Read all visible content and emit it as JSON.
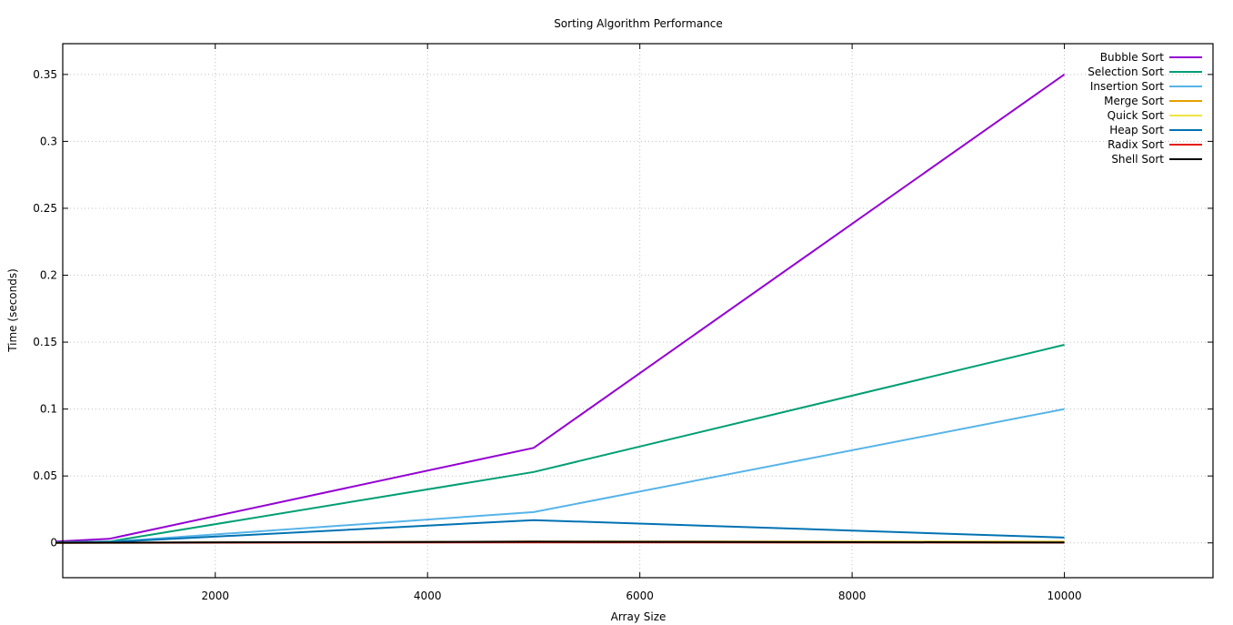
{
  "chart_data": {
    "type": "line",
    "title": "Sorting Algorithm Performance",
    "xlabel": "Array Size",
    "ylabel": "Time (seconds)",
    "xlim": [
      563,
      11400
    ],
    "ylim": [
      -0.026,
      0.373
    ],
    "xticks": [
      2000,
      4000,
      6000,
      8000,
      10000
    ],
    "xtick_labels": [
      "2000",
      "4000",
      "6000",
      "8000",
      "10000"
    ],
    "yticks": [
      0,
      0.05,
      0.1,
      0.15,
      0.2,
      0.25,
      0.3,
      0.35
    ],
    "ytick_labels": [
      "0",
      "0.05",
      "0.1",
      "0.15",
      "0.2",
      "0.25",
      "0.3",
      "0.35"
    ],
    "grid": true,
    "legend_position": "top-right",
    "x": [
      500,
      1000,
      5000,
      10000
    ],
    "series": [
      {
        "name": "Bubble Sort",
        "color": "#9400d3",
        "values": [
          0.001,
          0.003,
          0.071,
          0.35
        ]
      },
      {
        "name": "Selection Sort",
        "color": "#009e73",
        "values": [
          0.0005,
          0.001,
          0.053,
          0.148
        ]
      },
      {
        "name": "Insertion Sort",
        "color": "#56b4e9",
        "values": [
          0.0003,
          0.0008,
          0.023,
          0.1
        ]
      },
      {
        "name": "Merge Sort",
        "color": "#e69f00",
        "values": [
          0.0001,
          0.0002,
          0.001,
          0.001
        ]
      },
      {
        "name": "Quick Sort",
        "color": "#f0e442",
        "values": [
          0.0001,
          0.0001,
          0.0007,
          0.0008
        ]
      },
      {
        "name": "Heap Sort",
        "color": "#0072b2",
        "values": [
          0.0002,
          0.0006,
          0.017,
          0.004
        ]
      },
      {
        "name": "Radix Sort",
        "color": "#e51e10",
        "values": [
          0.0001,
          0.0001,
          0.0004,
          0.0002
        ]
      },
      {
        "name": "Shell Sort",
        "color": "#000000",
        "values": [
          0.0001,
          0.0002,
          0.0009,
          0.0003
        ]
      }
    ]
  }
}
